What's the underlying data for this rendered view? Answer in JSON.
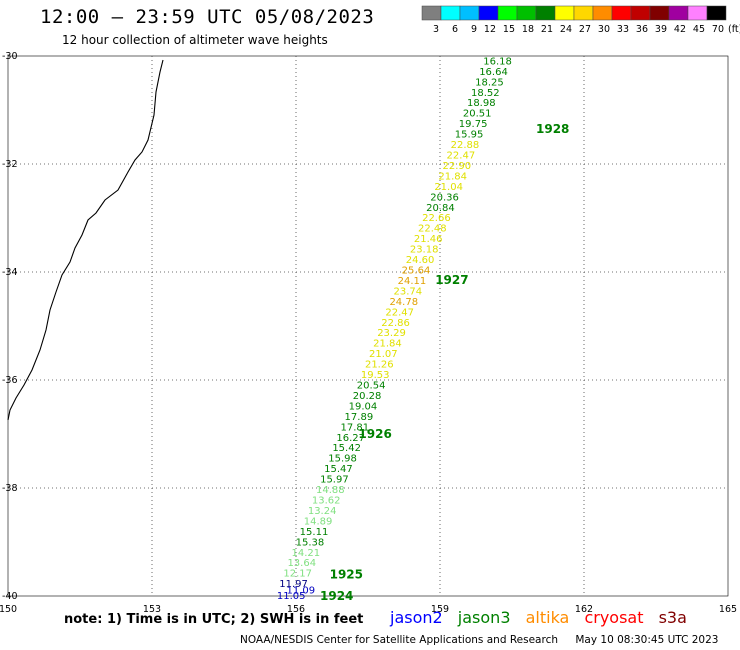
{
  "header": {
    "title": "12:00 – 23:59 UTC 05/08/2023",
    "subtitle": "12 hour collection of altimeter wave heights"
  },
  "legend": {
    "unit": "(ft)",
    "bins": [
      {
        "label": "3",
        "color": "#7f7f7f"
      },
      {
        "label": "6",
        "color": "#00ffff"
      },
      {
        "label": "9",
        "color": "#00bfff"
      },
      {
        "label": "12",
        "color": "#0000ff"
      },
      {
        "label": "15",
        "color": "#00ff00"
      },
      {
        "label": "18",
        "color": "#00c000"
      },
      {
        "label": "21",
        "color": "#008000"
      },
      {
        "label": "24",
        "color": "#ffff00"
      },
      {
        "label": "27",
        "color": "#ffd700"
      },
      {
        "label": "30",
        "color": "#ff8c00"
      },
      {
        "label": "33",
        "color": "#ff0000"
      },
      {
        "label": "36",
        "color": "#c00000"
      },
      {
        "label": "39",
        "color": "#800000"
      },
      {
        "label": "42",
        "color": "#a000a0"
      },
      {
        "label": "45",
        "color": "#ff80ff"
      },
      {
        "label": "70",
        "color": "#000000"
      }
    ]
  },
  "map": {
    "lon_range": [
      150,
      165
    ],
    "lat_range": [
      -30,
      -40
    ],
    "lon_ticks": [
      "150",
      "153",
      "156",
      "159",
      "162",
      "165"
    ],
    "lat_ticks": [
      "-30",
      "-32",
      "-34",
      "-36",
      "-38",
      "-40"
    ],
    "tracks": [
      {
        "lon_start": 155.9,
        "lat_start": -40.0,
        "lon_end": 156.1,
        "lat_end": -39.9,
        "values": [
          "11.05",
          "11.09"
        ],
        "colors": [
          "#0000c0",
          "#0000c0"
        ]
      },
      {
        "lon_start": 155.95,
        "lat_start": -39.78,
        "lon_end": 160.2,
        "lat_end": -30.1,
        "values": [
          "11.97",
          "12.17",
          "13.64",
          "14.21",
          "15.38",
          "15.11",
          "14.89",
          "13.24",
          "13.62",
          "14.88",
          "15.97",
          "15.47",
          "15.98",
          "15.42",
          "16.27",
          "17.81",
          "17.89",
          "19.04",
          "20.28",
          "20.54",
          "19.53",
          "21.26",
          "21.07",
          "21.84",
          "23.29",
          "22.86",
          "22.47",
          "24.78",
          "23.74",
          "24.11",
          "25.64",
          "24.60",
          "23.18",
          "21.46",
          "22.48",
          "22.66",
          "20.84",
          "20.36",
          "21.04",
          "21.84",
          "22.90",
          "22.47",
          "22.88",
          "15.95",
          "19.75",
          "20.51",
          "18.98",
          "18.52",
          "18.25",
          "16.64",
          "16.18"
        ],
        "colors": [
          "#000080",
          "#80e080",
          "#80e080",
          "#80e080",
          "#008000",
          "#008000",
          "#80e080",
          "#80e080",
          "#80e080",
          "#80e080",
          "#008000",
          "#008000",
          "#008000",
          "#008000",
          "#008000",
          "#008000",
          "#008000",
          "#008000",
          "#008000",
          "#008000",
          "#e0e000",
          "#e0e000",
          "#e0e000",
          "#e0e000",
          "#e0e000",
          "#e0e000",
          "#e0e000",
          "#e0a000",
          "#e0e000",
          "#e0a000",
          "#e0a000",
          "#e0e000",
          "#e0e000",
          "#e0e000",
          "#e0e000",
          "#e0e000",
          "#008000",
          "#008000",
          "#e0e000",
          "#e0e000",
          "#e0e000",
          "#e0e000",
          "#e0e000",
          "#008000",
          "#008000",
          "#008000",
          "#008000",
          "#008000",
          "#008000",
          "#008000",
          "#008000"
        ]
      }
    ],
    "orbits": [
      {
        "label": "1924",
        "lon": 156.5,
        "lat": -40.0
      },
      {
        "label": "1925",
        "lon": 156.7,
        "lat": -39.6
      },
      {
        "label": "1926",
        "lon": 157.3,
        "lat": -37.0
      },
      {
        "label": "1927",
        "lon": 158.9,
        "lat": -34.15
      },
      {
        "label": "1928",
        "lon": 161.0,
        "lat": -31.35
      }
    ]
  },
  "note": "note: 1) Time is in UTC; 2) SWH is in feet",
  "satellites": [
    {
      "name": "jason2",
      "color": "#0000ff"
    },
    {
      "name": "jason3",
      "color": "#008000"
    },
    {
      "name": "altika",
      "color": "#ff8c00"
    },
    {
      "name": "cryosat",
      "color": "#ff0000"
    },
    {
      "name": "s3a",
      "color": "#800000"
    }
  ],
  "footer": {
    "org": "NOAA/NESDIS Center for Satellite Applications and Research",
    "timestamp": "May 10 08:30:45 UTC 2023"
  }
}
